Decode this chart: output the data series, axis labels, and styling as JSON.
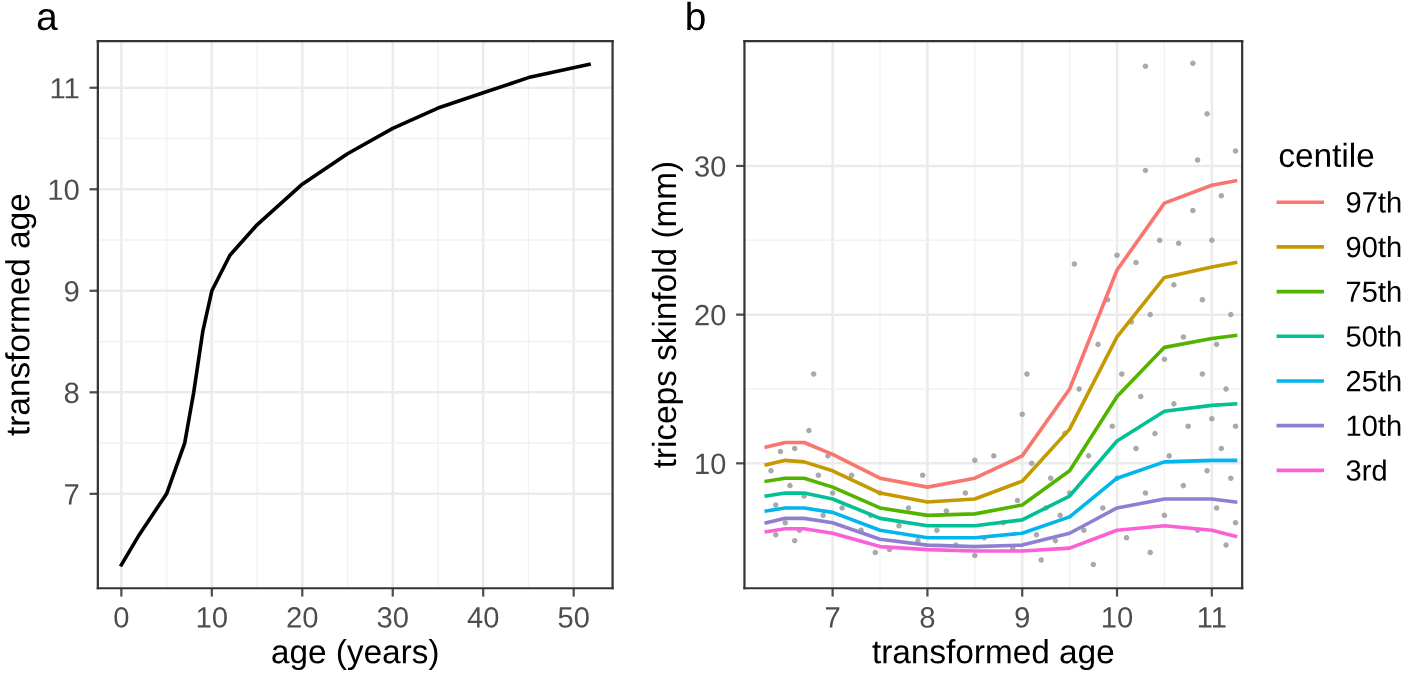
{
  "chart_data": [
    {
      "type": "line",
      "title": "a",
      "xlabel": "age (years)",
      "ylabel": "transformed age",
      "xlim": [
        -2.6,
        54.3
      ],
      "ylim": [
        6.07,
        11.46
      ],
      "xticks": [
        0,
        10,
        20,
        30,
        40,
        50
      ],
      "yticks": [
        7,
        8,
        9,
        10,
        11
      ],
      "grid": true,
      "legend": false,
      "series": [
        {
          "color": "#000000",
          "x": [
            0,
            2,
            5,
            7,
            8,
            9,
            10,
            12,
            15,
            20,
            25,
            30,
            35,
            40,
            45,
            51.7
          ],
          "values": [
            6.3,
            6.6,
            7.0,
            7.5,
            8.0,
            8.6,
            9.0,
            9.35,
            9.65,
            10.05,
            10.35,
            10.6,
            10.8,
            10.95,
            11.1,
            11.23
          ]
        }
      ]
    },
    {
      "type": "line",
      "title": "b",
      "xlabel": "transformed age",
      "ylabel": "triceps skinfold (mm)",
      "legend_title": "centile",
      "xlim": [
        6.07,
        11.32
      ],
      "ylim": [
        1.6,
        38.4
      ],
      "xticks": [
        7,
        8,
        9,
        10,
        11
      ],
      "yticks": [
        10,
        20,
        30
      ],
      "grid": true,
      "legend": "right",
      "series": [
        {
          "type": "scatter",
          "color": "#a9a9a9",
          "x": [
            6.35,
            6.4,
            6.45,
            6.5,
            6.55,
            6.6,
            6.65,
            6.7,
            6.75,
            6.8,
            6.85,
            6.9,
            6.95,
            6.4,
            6.6,
            7.0,
            7.1,
            7.2,
            7.3,
            7.4,
            7.5,
            7.6,
            7.7,
            7.8,
            7.9,
            7.45,
            7.95,
            8.1,
            8.2,
            8.3,
            8.4,
            8.5,
            8.6,
            8.7,
            8.8,
            8.9,
            8.95,
            8.5,
            9.0,
            9.05,
            9.1,
            9.15,
            9.2,
            9.25,
            9.3,
            9.35,
            9.4,
            9.45,
            9.5,
            9.55,
            9.6,
            9.65,
            9.7,
            9.75,
            9.8,
            9.85,
            9.9,
            9.95,
            10.0,
            10.0,
            10.05,
            10.1,
            10.15,
            10.2,
            10.2,
            10.25,
            10.3,
            10.3,
            10.3,
            10.35,
            10.35,
            10.4,
            10.45,
            10.5,
            10.5,
            10.55,
            10.6,
            10.6,
            10.65,
            10.7,
            10.7,
            10.75,
            10.8,
            10.8,
            10.85,
            10.85,
            10.9,
            10.9,
            10.95,
            10.95,
            11.0,
            11.0,
            11.05,
            11.05,
            11.1,
            11.1,
            11.15,
            11.15,
            11.2,
            11.2,
            11.25,
            11.25,
            11.25
          ],
          "values": [
            9.5,
            7.2,
            10.8,
            6.0,
            8.5,
            11.0,
            5.5,
            7.8,
            12.2,
            16.0,
            9.2,
            6.5,
            10.5,
            5.2,
            4.8,
            8.0,
            7.0,
            9.2,
            5.5,
            6.5,
            8.0,
            4.2,
            5.8,
            7.0,
            4.8,
            4.0,
            9.2,
            5.5,
            6.8,
            4.5,
            8.0,
            10.2,
            5.0,
            10.5,
            6.0,
            4.3,
            7.5,
            3.8,
            13.3,
            16.0,
            10.0,
            5.2,
            3.5,
            7.0,
            9.0,
            4.8,
            6.5,
            12.0,
            8.0,
            23.4,
            15.0,
            5.5,
            10.5,
            3.2,
            18.0,
            7.0,
            21.0,
            12.5,
            24.0,
            9.0,
            16.0,
            5.0,
            19.5,
            11.0,
            23.5,
            14.5,
            36.7,
            29.7,
            8.0,
            4.0,
            20.0,
            12.0,
            25.0,
            17.0,
            6.5,
            10.5,
            22.0,
            14.0,
            24.8,
            8.5,
            18.5,
            12.5,
            36.9,
            27.0,
            30.4,
            5.5,
            16.0,
            21.0,
            9.5,
            33.5,
            13.0,
            25.0,
            7.0,
            18.0,
            11.0,
            28.0,
            15.0,
            4.5,
            20.0,
            9.0,
            12.5,
            31.0,
            6.0
          ]
        },
        {
          "name": "97th",
          "color": "#f8766d",
          "x": [
            6.3,
            6.5,
            6.7,
            7,
            7.5,
            8,
            8.5,
            9,
            9.5,
            10,
            10.5,
            11,
            11.25
          ],
          "values": [
            11.1,
            11.4,
            11.4,
            10.6,
            9.0,
            8.4,
            9.0,
            10.5,
            15,
            23,
            27.5,
            28.7,
            29.0
          ]
        },
        {
          "name": "90th",
          "color": "#c49a00",
          "x": [
            6.3,
            6.5,
            6.7,
            7,
            7.5,
            8,
            8.5,
            9,
            9.5,
            10,
            10.5,
            11,
            11.25
          ],
          "values": [
            9.9,
            10.2,
            10.1,
            9.5,
            8.0,
            7.4,
            7.6,
            8.8,
            12.3,
            18.5,
            22.5,
            23.2,
            23.5
          ]
        },
        {
          "name": "75th",
          "color": "#53b400",
          "x": [
            6.3,
            6.5,
            6.7,
            7,
            7.5,
            8,
            8.5,
            9,
            9.5,
            10,
            10.5,
            11,
            11.25
          ],
          "values": [
            8.8,
            9.0,
            9.0,
            8.4,
            7.0,
            6.5,
            6.6,
            7.2,
            9.5,
            14.5,
            17.8,
            18.4,
            18.6
          ]
        },
        {
          "name": "50th",
          "color": "#00c094",
          "x": [
            6.3,
            6.5,
            6.7,
            7,
            7.5,
            8,
            8.5,
            9,
            9.5,
            10,
            10.5,
            11,
            11.25
          ],
          "values": [
            7.8,
            8.0,
            8.0,
            7.6,
            6.3,
            5.8,
            5.8,
            6.2,
            7.8,
            11.5,
            13.5,
            13.9,
            14.0
          ]
        },
        {
          "name": "25th",
          "color": "#00b6eb",
          "x": [
            6.3,
            6.5,
            6.7,
            7,
            7.5,
            8,
            8.5,
            9,
            9.5,
            10,
            10.5,
            11,
            11.25
          ],
          "values": [
            6.8,
            7.0,
            7.0,
            6.7,
            5.5,
            5.0,
            5.0,
            5.3,
            6.4,
            9.0,
            10.1,
            10.2,
            10.2
          ]
        },
        {
          "name": "10th",
          "color": "#8f7fd0",
          "x": [
            6.3,
            6.5,
            6.7,
            7,
            7.5,
            8,
            8.5,
            9,
            9.5,
            10,
            10.5,
            11,
            11.25
          ],
          "values": [
            6.0,
            6.3,
            6.3,
            6.0,
            4.9,
            4.5,
            4.4,
            4.5,
            5.3,
            7.0,
            7.6,
            7.6,
            7.4
          ]
        },
        {
          "name": "3rd",
          "color": "#fb61d7",
          "x": [
            6.3,
            6.5,
            6.7,
            7,
            7.5,
            8,
            8.5,
            9,
            9.5,
            10,
            10.5,
            11,
            11.25
          ],
          "values": [
            5.4,
            5.6,
            5.6,
            5.3,
            4.4,
            4.2,
            4.1,
            4.1,
            4.3,
            5.5,
            5.8,
            5.5,
            5.1
          ]
        }
      ]
    }
  ]
}
